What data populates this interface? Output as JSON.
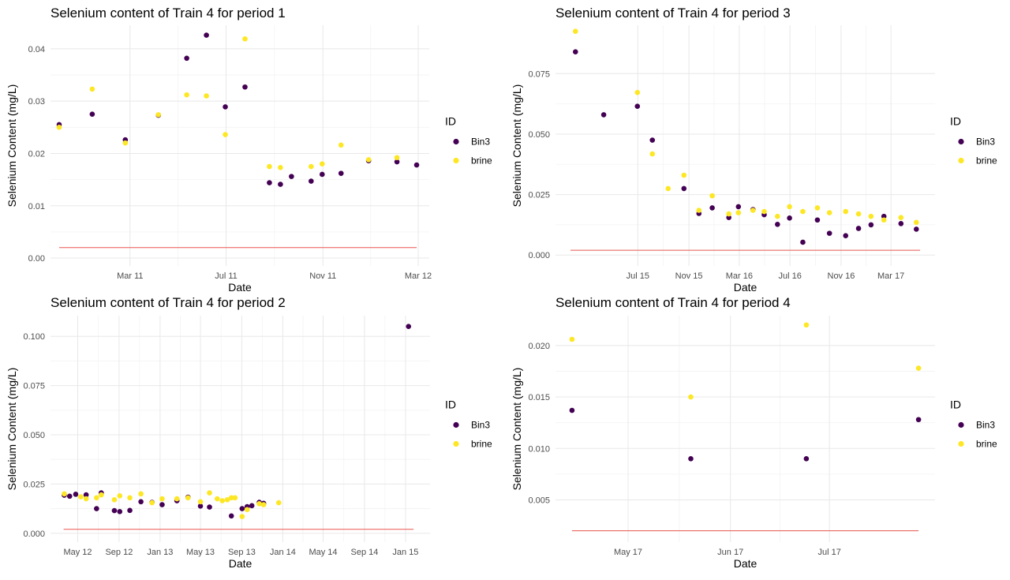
{
  "colors": {
    "bin3": "#440154",
    "brine": "#FDE725",
    "threshold": "#E8554E"
  },
  "legend_title": "ID",
  "chart_data": [
    {
      "type": "scatter",
      "title": "Selenium content of Train 4 for period 1",
      "xlabel": "Date",
      "ylabel": "Selenium Content (mg/L)",
      "x_is_date": true,
      "xlim": [
        "2010-11-20",
        "2012-03-15"
      ],
      "ylim": [
        -0.0015,
        0.0445
      ],
      "xticks": [
        {
          "x": "2011-03-01",
          "label": "Mar 11"
        },
        {
          "x": "2011-07-01",
          "label": "Jul 11"
        },
        {
          "x": "2011-11-01",
          "label": "Nov 11"
        },
        {
          "x": "2012-03-01",
          "label": "Mar 12"
        }
      ],
      "yticks": [
        {
          "y": 0.0,
          "label": "0.00"
        },
        {
          "y": 0.01,
          "label": "0.01"
        },
        {
          "y": 0.02,
          "label": "0.02"
        },
        {
          "y": 0.03,
          "label": "0.03"
        },
        {
          "y": 0.04,
          "label": "0.04"
        }
      ],
      "hline": {
        "y": 0.002,
        "x_start": "2010-12-01",
        "x_end": "2012-02-28"
      },
      "legend": [
        "Bin3",
        "brine"
      ],
      "series": [
        {
          "name": "Bin3",
          "points": [
            [
              "2010-12-01",
              0.0255
            ],
            [
              "2011-01-12",
              0.0275
            ],
            [
              "2011-02-23",
              0.0226
            ],
            [
              "2011-04-06",
              0.0273
            ],
            [
              "2011-05-12",
              0.0382
            ],
            [
              "2011-06-06",
              0.0426
            ],
            [
              "2011-06-30",
              0.0289
            ],
            [
              "2011-07-25",
              0.0327
            ],
            [
              "2011-08-25",
              0.0144
            ],
            [
              "2011-09-08",
              0.0141
            ],
            [
              "2011-09-22",
              0.0156
            ],
            [
              "2011-10-17",
              0.0147
            ],
            [
              "2011-10-31",
              0.016
            ],
            [
              "2011-11-24",
              0.0162
            ],
            [
              "2011-12-29",
              0.0186
            ],
            [
              "2012-02-03",
              0.0184
            ],
            [
              "2012-02-28",
              0.0178
            ]
          ]
        },
        {
          "name": "brine",
          "points": [
            [
              "2010-12-01",
              0.025
            ],
            [
              "2011-01-12",
              0.0323
            ],
            [
              "2011-02-23",
              0.022
            ],
            [
              "2011-04-06",
              0.0274
            ],
            [
              "2011-05-12",
              0.0312
            ],
            [
              "2011-06-06",
              0.031
            ],
            [
              "2011-06-30",
              0.0236
            ],
            [
              "2011-07-25",
              0.0419
            ],
            [
              "2011-08-25",
              0.0175
            ],
            [
              "2011-09-08",
              0.0173
            ],
            [
              "2011-10-17",
              0.0175
            ],
            [
              "2011-10-31",
              0.018
            ],
            [
              "2011-11-24",
              0.0216
            ],
            [
              "2011-12-29",
              0.0188
            ],
            [
              "2012-02-03",
              0.0192
            ]
          ]
        }
      ]
    },
    {
      "type": "scatter",
      "title": "Selenium content of Train 4 for period 3",
      "xlabel": "Date",
      "ylabel": "Selenium Content (mg/L)",
      "x_is_date": true,
      "xlim": [
        "2014-12-15",
        "2017-06-15"
      ],
      "ylim": [
        -0.0045,
        0.095
      ],
      "xticks": [
        {
          "x": "2015-07-01",
          "label": "Jul 15"
        },
        {
          "x": "2015-11-01",
          "label": "Nov 15"
        },
        {
          "x": "2016-03-01",
          "label": "Mar 16"
        },
        {
          "x": "2016-07-01",
          "label": "Jul 16"
        },
        {
          "x": "2016-11-01",
          "label": "Nov 16"
        },
        {
          "x": "2017-03-01",
          "label": "Mar 17"
        }
      ],
      "yticks": [
        {
          "y": 0.0,
          "label": "0.000"
        },
        {
          "y": 0.025,
          "label": "0.025"
        },
        {
          "y": 0.05,
          "label": "0.050"
        },
        {
          "y": 0.075,
          "label": "0.075"
        }
      ],
      "hline": {
        "y": 0.002,
        "x_start": "2015-01-20",
        "x_end": "2017-05-10"
      },
      "legend": [
        "Bin3",
        "brine"
      ],
      "series": [
        {
          "name": "Bin3",
          "points": [
            [
              "2015-02-01",
              0.084
            ],
            [
              "2015-04-10",
              0.058
            ],
            [
              "2015-06-30",
              0.0615
            ],
            [
              "2015-08-05",
              0.0475
            ],
            [
              "2015-10-20",
              0.0275
            ],
            [
              "2015-11-25",
              0.0172
            ],
            [
              "2015-12-27",
              0.0195
            ],
            [
              "2016-02-05",
              0.0155
            ],
            [
              "2016-02-28",
              0.02
            ],
            [
              "2016-04-03",
              0.0188
            ],
            [
              "2016-04-30",
              0.0167
            ],
            [
              "2016-06-01",
              0.0127
            ],
            [
              "2016-06-30",
              0.0153
            ],
            [
              "2016-08-01",
              0.0053
            ],
            [
              "2016-09-05",
              0.0145
            ],
            [
              "2016-10-04",
              0.009
            ],
            [
              "2016-11-12",
              0.008
            ],
            [
              "2016-12-13",
              0.011
            ],
            [
              "2017-01-12",
              0.0125
            ],
            [
              "2017-02-12",
              0.016
            ],
            [
              "2017-03-25",
              0.013
            ],
            [
              "2017-05-01",
              0.0107
            ]
          ]
        },
        {
          "name": "brine",
          "points": [
            [
              "2015-02-01",
              0.0925
            ],
            [
              "2015-06-30",
              0.0672
            ],
            [
              "2015-08-05",
              0.0418
            ],
            [
              "2015-09-12",
              0.0275
            ],
            [
              "2015-10-20",
              0.033
            ],
            [
              "2015-11-25",
              0.0185
            ],
            [
              "2015-12-27",
              0.0245
            ],
            [
              "2016-02-05",
              0.017
            ],
            [
              "2016-02-28",
              0.0175
            ],
            [
              "2016-04-03",
              0.0185
            ],
            [
              "2016-04-30",
              0.018
            ],
            [
              "2016-06-01",
              0.016
            ],
            [
              "2016-06-30",
              0.02
            ],
            [
              "2016-08-01",
              0.018
            ],
            [
              "2016-09-05",
              0.0195
            ],
            [
              "2016-10-04",
              0.0175
            ],
            [
              "2016-11-12",
              0.018
            ],
            [
              "2016-12-13",
              0.017
            ],
            [
              "2017-01-12",
              0.016
            ],
            [
              "2017-02-12",
              0.0145
            ],
            [
              "2017-03-25",
              0.0155
            ],
            [
              "2017-05-01",
              0.0135
            ]
          ]
        }
      ]
    },
    {
      "type": "scatter",
      "title": "Selenium content of Train 4 for period 2",
      "xlabel": "Date",
      "ylabel": "Selenium Content (mg/L)",
      "x_is_date": true,
      "xlim": [
        "2012-02-10",
        "2015-03-15"
      ],
      "ylim": [
        -0.0045,
        0.1105
      ],
      "xticks": [
        {
          "x": "2012-05-01",
          "label": "May 12"
        },
        {
          "x": "2012-09-01",
          "label": "Sep 12"
        },
        {
          "x": "2013-01-01",
          "label": "Jan 13"
        },
        {
          "x": "2013-05-01",
          "label": "May 13"
        },
        {
          "x": "2013-09-01",
          "label": "Sep 13"
        },
        {
          "x": "2014-01-01",
          "label": "Jan 14"
        },
        {
          "x": "2014-05-01",
          "label": "May 14"
        },
        {
          "x": "2014-09-01",
          "label": "Sep 14"
        },
        {
          "x": "2015-01-01",
          "label": "Jan 15"
        }
      ],
      "yticks": [
        {
          "y": 0.0,
          "label": "0.000"
        },
        {
          "y": 0.025,
          "label": "0.025"
        },
        {
          "y": 0.05,
          "label": "0.050"
        },
        {
          "y": 0.075,
          "label": "0.075"
        },
        {
          "y": 0.1,
          "label": "0.100"
        }
      ],
      "hline": {
        "y": 0.002,
        "x_start": "2012-03-20",
        "x_end": "2015-01-25"
      },
      "legend": [
        "Bin3",
        "brine"
      ],
      "series": [
        {
          "name": "Bin3",
          "points": [
            [
              "2012-03-22",
              0.0193
            ],
            [
              "2012-04-07",
              0.0188
            ],
            [
              "2012-04-25",
              0.0198
            ],
            [
              "2012-05-26",
              0.0195
            ],
            [
              "2012-06-26",
              0.0125
            ],
            [
              "2012-07-10",
              0.0205
            ],
            [
              "2012-08-18",
              0.0115
            ],
            [
              "2012-09-03",
              0.011
            ],
            [
              "2012-10-03",
              0.0116
            ],
            [
              "2012-11-05",
              0.016
            ],
            [
              "2012-12-08",
              0.0157
            ],
            [
              "2013-01-07",
              0.0145
            ],
            [
              "2013-02-20",
              0.0165
            ],
            [
              "2013-03-25",
              0.0183
            ],
            [
              "2013-05-01",
              0.0138
            ],
            [
              "2013-05-28",
              0.0133
            ],
            [
              "2013-08-01",
              0.0088
            ],
            [
              "2013-09-02",
              0.0125
            ],
            [
              "2013-09-17",
              0.0135
            ],
            [
              "2013-10-01",
              0.014
            ],
            [
              "2013-10-23",
              0.0157
            ],
            [
              "2013-11-05",
              0.0152
            ],
            [
              "2015-01-10",
              0.105
            ]
          ]
        },
        {
          "name": "brine",
          "points": [
            [
              "2012-03-22",
              0.02
            ],
            [
              "2012-05-10",
              0.0185
            ],
            [
              "2012-05-26",
              0.0175
            ],
            [
              "2012-06-26",
              0.018
            ],
            [
              "2012-07-10",
              0.0195
            ],
            [
              "2012-08-18",
              0.017
            ],
            [
              "2012-09-03",
              0.019
            ],
            [
              "2012-10-03",
              0.018
            ],
            [
              "2012-11-05",
              0.02
            ],
            [
              "2012-12-08",
              0.0155
            ],
            [
              "2013-01-07",
              0.0175
            ],
            [
              "2013-02-20",
              0.0175
            ],
            [
              "2013-03-25",
              0.018
            ],
            [
              "2013-05-01",
              0.016
            ],
            [
              "2013-05-28",
              0.0205
            ],
            [
              "2013-06-20",
              0.0175
            ],
            [
              "2013-07-05",
              0.0165
            ],
            [
              "2013-07-20",
              0.017
            ],
            [
              "2013-08-01",
              0.018
            ],
            [
              "2013-08-12",
              0.018
            ],
            [
              "2013-09-02",
              0.0085
            ],
            [
              "2013-09-17",
              0.012
            ],
            [
              "2013-10-23",
              0.015
            ],
            [
              "2013-11-05",
              0.0145
            ],
            [
              "2013-12-20",
              0.0155
            ]
          ]
        }
      ]
    },
    {
      "type": "scatter",
      "title": "Selenium content of Train 4 for period 4",
      "xlabel": "Date",
      "ylabel": "Selenium Content (mg/L)",
      "x_is_date": true,
      "xlim": [
        "2017-04-09",
        "2017-08-02"
      ],
      "ylim": [
        0.0009,
        0.0229
      ],
      "xticks": [
        {
          "x": "2017-05-01",
          "label": "May 17"
        },
        {
          "x": "2017-06-01",
          "label": "Jun 17"
        },
        {
          "x": "2017-07-01",
          "label": "Jul 17"
        }
      ],
      "yticks": [
        {
          "y": 0.005,
          "label": "0.005"
        },
        {
          "y": 0.01,
          "label": "0.010"
        },
        {
          "y": 0.015,
          "label": "0.015"
        },
        {
          "y": 0.02,
          "label": "0.020"
        }
      ],
      "hline": {
        "y": 0.002,
        "x_start": "2017-04-14",
        "x_end": "2017-07-28"
      },
      "legend": [
        "Bin3",
        "brine"
      ],
      "series": [
        {
          "name": "Bin3",
          "points": [
            [
              "2017-04-14",
              0.0137
            ],
            [
              "2017-05-20",
              0.009
            ],
            [
              "2017-06-24",
              0.009
            ],
            [
              "2017-07-28",
              0.0128
            ]
          ]
        },
        {
          "name": "brine",
          "points": [
            [
              "2017-04-14",
              0.0206
            ],
            [
              "2017-05-20",
              0.015
            ],
            [
              "2017-06-24",
              0.022
            ],
            [
              "2017-07-28",
              0.0178
            ]
          ]
        }
      ]
    }
  ]
}
